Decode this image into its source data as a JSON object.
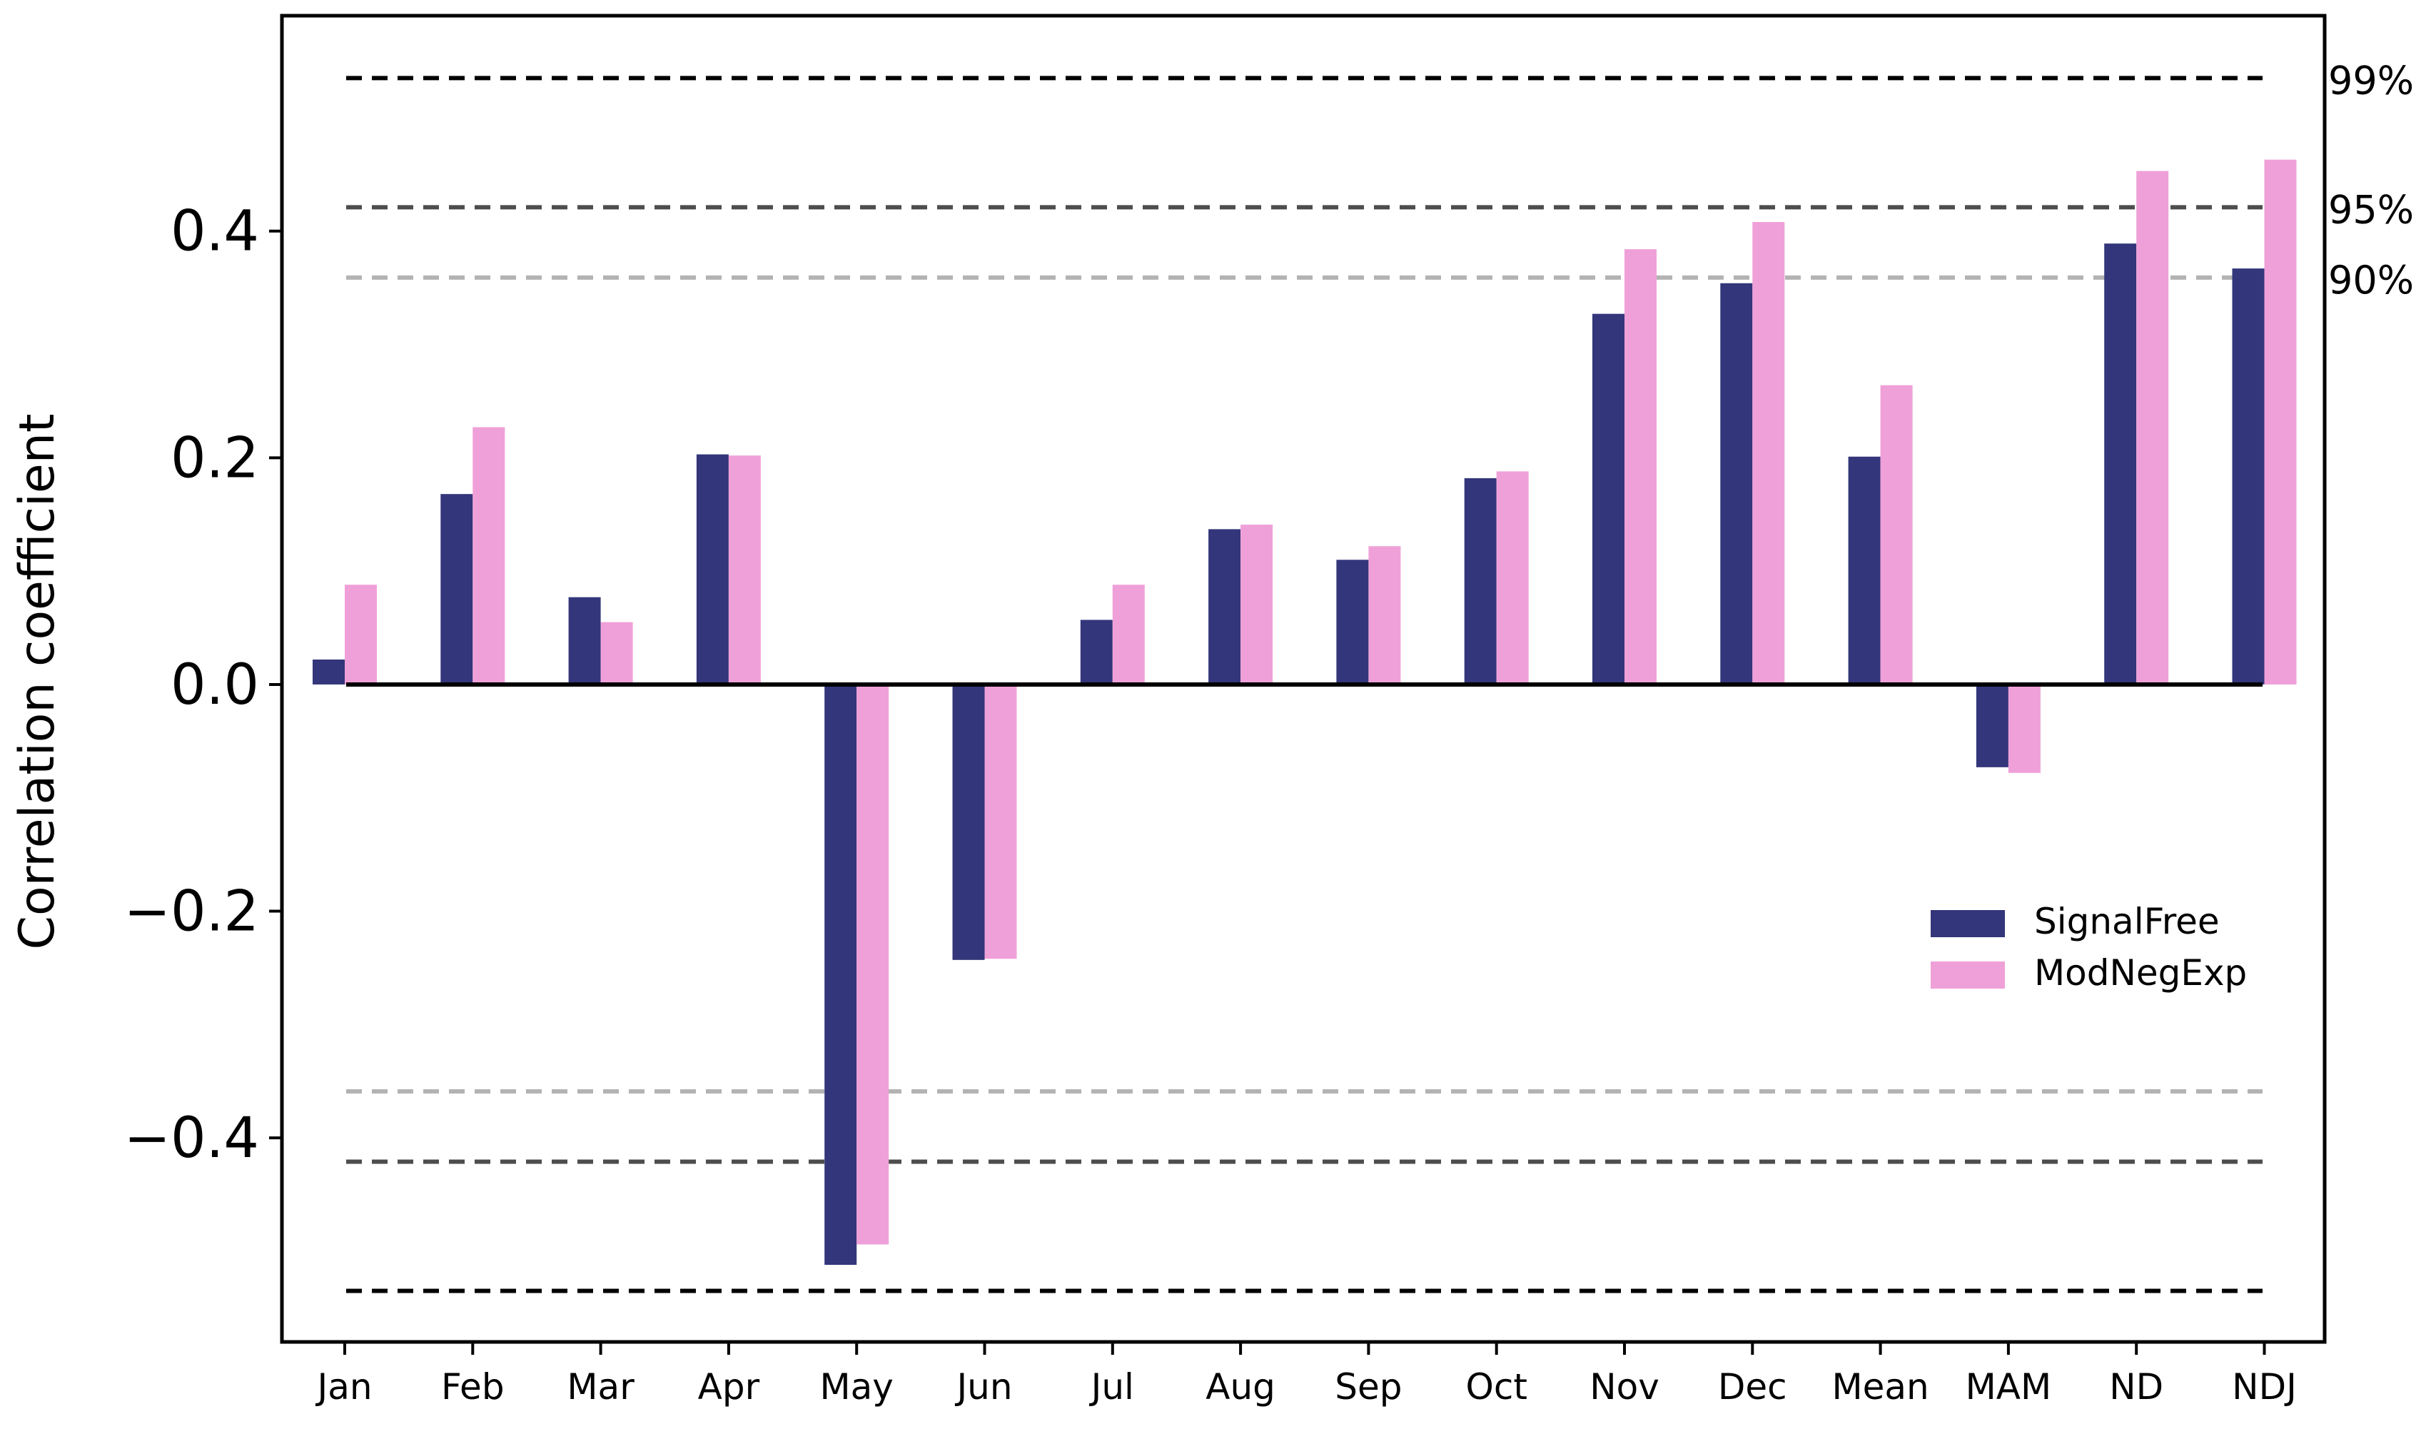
{
  "chart_data": {
    "type": "bar",
    "title": "",
    "xlabel": "",
    "ylabel": "Correlation coefficient",
    "ylim": [
      -0.58,
      0.59
    ],
    "yticks": [
      -0.4,
      -0.2,
      0.0,
      0.2,
      0.4
    ],
    "ytick_labels": [
      "−0.4",
      "−0.2",
      "0.0",
      "0.2",
      "0.4"
    ],
    "categories": [
      "Jan",
      "Feb",
      "Mar",
      "Apr",
      "May",
      "Jun",
      "Jul",
      "Aug",
      "Sep",
      "Oct",
      "Nov",
      "Dec",
      "Mean",
      "MAM",
      "ND",
      "NDJ"
    ],
    "series": [
      {
        "name": "SignalFree",
        "color": "#33367a",
        "values": [
          0.022,
          0.168,
          0.077,
          0.203,
          -0.512,
          -0.243,
          0.057,
          0.137,
          0.11,
          0.182,
          0.327,
          0.354,
          0.201,
          -0.073,
          0.389,
          0.367
        ]
      },
      {
        "name": "ModNegExp",
        "color": "#f0a0d8",
        "values": [
          0.088,
          0.227,
          0.055,
          0.202,
          -0.494,
          -0.242,
          0.088,
          0.141,
          0.122,
          0.188,
          0.384,
          0.408,
          0.264,
          -0.078,
          0.453,
          0.463
        ]
      }
    ],
    "legend": {
      "position": "center-right",
      "entries": [
        "SignalFree",
        "ModNegExp"
      ]
    },
    "significance_lines": [
      {
        "label": "99%",
        "value": 0.535,
        "color": "#000000"
      },
      {
        "label": "95%",
        "value": 0.421,
        "color": "#4d4d4d"
      },
      {
        "label": "90%",
        "value": 0.359,
        "color": "#b3b3b3"
      }
    ],
    "grid": false
  }
}
